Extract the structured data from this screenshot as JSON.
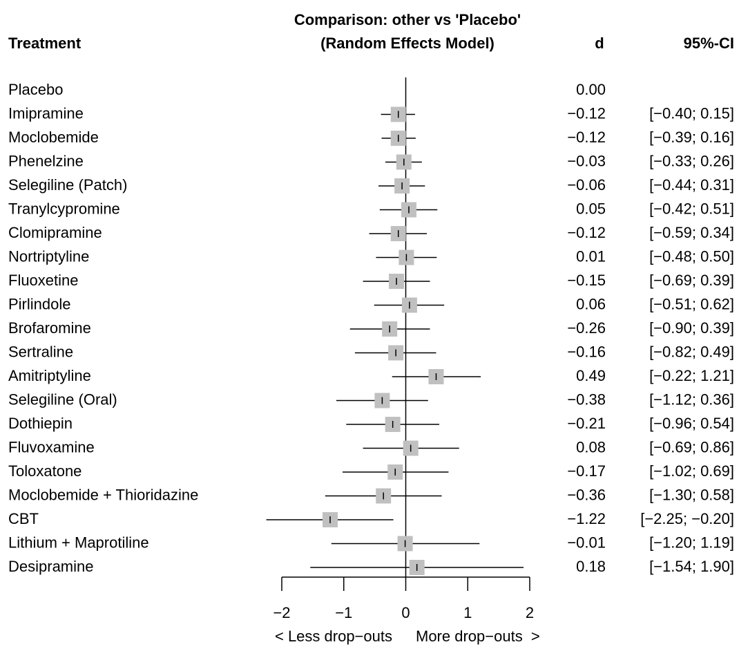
{
  "chart_data": {
    "type": "forest",
    "title": "Comparison: other vs 'Placebo'",
    "subtitle": "(Random Effects Model)",
    "label_header": "Treatment",
    "value_header": "d",
    "ci_header": "95%-CI",
    "xlabel_left": "< Less drop−outs",
    "xlabel_right": "More drop−outs  >",
    "categories": [
      "Placebo",
      "Imipramine",
      "Moclobemide",
      "Phenelzine",
      "Selegiline (Patch)",
      "Tranylcypromine",
      "Clomipramine",
      "Nortriptyline",
      "Fluoxetine",
      "Pirlindole",
      "Brofaromine",
      "Sertraline",
      "Amitriptyline",
      "Selegiline (Oral)",
      "Dothiepin",
      "Fluvoxamine",
      "Toloxatone",
      "Moclobemide + Thioridazine",
      "CBT",
      "Lithium + Maprotiline",
      "Desipramine"
    ],
    "values": [
      0.0,
      -0.12,
      -0.12,
      -0.03,
      -0.06,
      0.05,
      -0.12,
      0.01,
      -0.15,
      0.06,
      -0.26,
      -0.16,
      0.49,
      -0.38,
      -0.21,
      0.08,
      -0.17,
      -0.36,
      -1.22,
      -0.01,
      0.18
    ],
    "value_labels": [
      "0.00",
      "−0.12",
      "−0.12",
      "−0.03",
      "−0.06",
      "0.05",
      "−0.12",
      "0.01",
      "−0.15",
      "0.06",
      "−0.26",
      "−0.16",
      "0.49",
      "−0.38",
      "−0.21",
      "0.08",
      "−0.17",
      "−0.36",
      "−1.22",
      "−0.01",
      "0.18"
    ],
    "lower": [
      null,
      -0.4,
      -0.39,
      -0.33,
      -0.44,
      -0.42,
      -0.59,
      -0.48,
      -0.69,
      -0.51,
      -0.9,
      -0.82,
      -0.22,
      -1.12,
      -0.96,
      -0.69,
      -1.02,
      -1.3,
      -2.25,
      -1.2,
      -1.54
    ],
    "upper": [
      null,
      0.15,
      0.16,
      0.26,
      0.31,
      0.51,
      0.34,
      0.5,
      0.39,
      0.62,
      0.39,
      0.49,
      1.21,
      0.36,
      0.54,
      0.86,
      0.69,
      0.58,
      -0.2,
      1.19,
      1.9
    ],
    "ci_labels": [
      null,
      "[−0.40; 0.15]",
      "[−0.39; 0.16]",
      "[−0.33; 0.26]",
      "[−0.44; 0.31]",
      "[−0.42; 0.51]",
      "[−0.59; 0.34]",
      "[−0.48; 0.50]",
      "[−0.69; 0.39]",
      "[−0.51; 0.62]",
      "[−0.90; 0.39]",
      "[−0.82; 0.49]",
      "[−0.22; 1.21]",
      "[−1.12; 0.36]",
      "[−0.96; 0.54]",
      "[−0.69; 0.86]",
      "[−1.02; 0.69]",
      "[−1.30; 0.58]",
      "[−2.25; −0.20]",
      "[−1.20; 1.19]",
      "[−1.54; 1.90]"
    ],
    "xlim": [
      -2,
      2
    ],
    "xticks": [
      {
        "value": -2,
        "label": "−2"
      },
      {
        "value": -1,
        "label": "−1"
      },
      0,
      1,
      2
    ],
    "square_color": "#c0c0c0"
  }
}
